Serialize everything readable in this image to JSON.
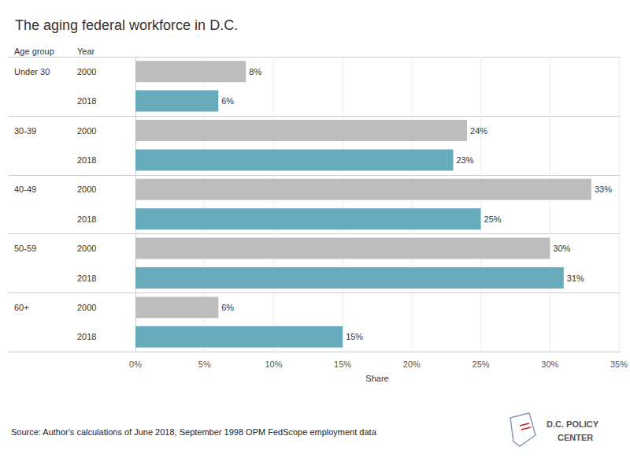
{
  "chart_data": {
    "type": "bar",
    "title": "The aging federal workforce in D.C.",
    "headers": [
      "Age group",
      "Year"
    ],
    "categories": [
      "Under 30",
      "30-39",
      "40-49",
      "50-59",
      "60+"
    ],
    "series": [
      {
        "name": "2000",
        "color": "#bdbdbd",
        "values": [
          8,
          24,
          33,
          30,
          6
        ],
        "value_labels": [
          "8%",
          "24%",
          "33%",
          "30%",
          "6%"
        ]
      },
      {
        "name": "2018",
        "color": "#67abbc",
        "values": [
          6,
          23,
          25,
          31,
          15
        ],
        "value_labels": [
          "6%",
          "23%",
          "25%",
          "31%",
          "15%"
        ]
      }
    ],
    "xlabel": "Share",
    "xlim": [
      0,
      35
    ],
    "xticks": [
      {
        "value": 0,
        "label": "0%"
      },
      {
        "value": 5,
        "label": "5%"
      },
      {
        "value": 10,
        "label": "10%"
      },
      {
        "value": 15,
        "label": "15%"
      },
      {
        "value": 20,
        "label": "20%"
      },
      {
        "value": 25,
        "label": "25%"
      },
      {
        "value": 30,
        "label": "30%"
      },
      {
        "value": 35,
        "label": "35%"
      }
    ],
    "orientation": "horizontal",
    "grid": true,
    "data_labels": true,
    "source": "Source: Author's calculations of June 2018, September 1998 OPM FedScope employment data",
    "logo": [
      "D.C. POLICY",
      "CENTER"
    ]
  }
}
